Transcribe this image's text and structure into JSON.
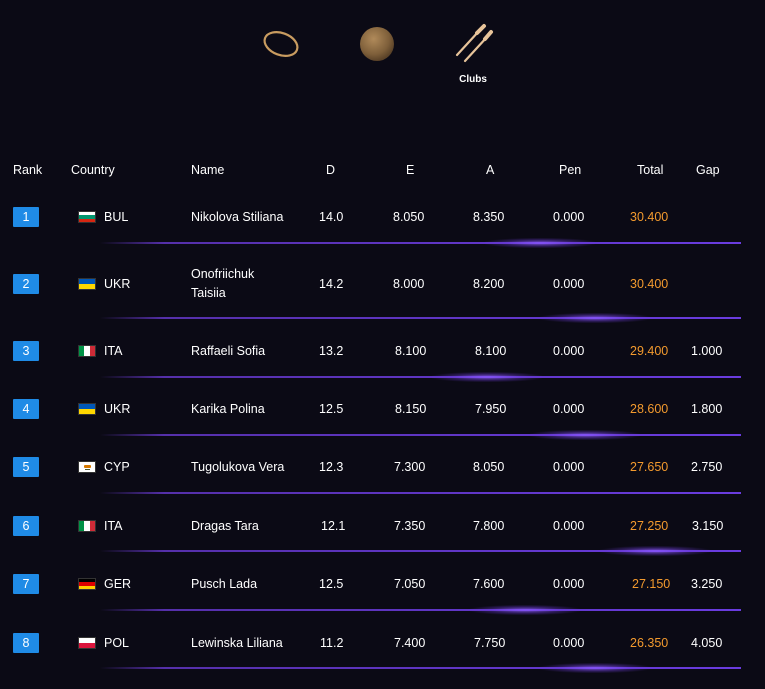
{
  "apparatus": [
    {
      "icon": "hoop-icon",
      "label": ""
    },
    {
      "icon": "ball-icon",
      "label": ""
    },
    {
      "icon": "clubs-icon",
      "label": "Clubs"
    }
  ],
  "table": {
    "headers": {
      "rank": "Rank",
      "country": "Country",
      "name": "Name",
      "d": "D",
      "e": "E",
      "a": "A",
      "pen": "Pen",
      "total": "Total",
      "gap": "Gap"
    },
    "rows": [
      {
        "rank": "1",
        "flag": "bulgaria-flag",
        "country": "BUL",
        "name": "Nikolova Stiliana",
        "name2": "",
        "d": "14.0",
        "e": "8.050",
        "a": "8.350",
        "pen": "0.000",
        "total": "30.400",
        "gap": ""
      },
      {
        "rank": "2",
        "flag": "ukraine-flag",
        "country": "UKR",
        "name": "Onofriichuk",
        "name2": "Taisiia",
        "d": "14.2",
        "e": "8.000",
        "a": "8.200",
        "pen": "0.000",
        "total": "30.400",
        "gap": ""
      },
      {
        "rank": "3",
        "flag": "italy-flag",
        "country": "ITA",
        "name": "Raffaeli Sofia",
        "name2": "",
        "d": "13.2",
        "e": "8.100",
        "a": "8.100",
        "pen": "0.000",
        "total": "29.400",
        "gap": "1.000"
      },
      {
        "rank": "4",
        "flag": "ukraine-flag",
        "country": "UKR",
        "name": "Karika Polina",
        "name2": "",
        "d": "12.5",
        "e": "8.150",
        "a": "7.950",
        "pen": "0.000",
        "total": "28.600",
        "gap": "1.800"
      },
      {
        "rank": "5",
        "flag": "cyprus-flag",
        "country": "CYP",
        "name": "Tugolukova Vera",
        "name2": "",
        "d": "12.3",
        "e": "7.300",
        "a": "8.050",
        "pen": "0.000",
        "total": "27.650",
        "gap": "2.750"
      },
      {
        "rank": "6",
        "flag": "italy-flag",
        "country": "ITA",
        "name": "Dragas Tara",
        "name2": "",
        "d": "12.1",
        "e": "7.350",
        "a": "7.800",
        "pen": "0.000",
        "total": "27.250",
        "gap": "3.150"
      },
      {
        "rank": "7",
        "flag": "germany-flag",
        "country": "GER",
        "name": "Pusch Lada",
        "name2": "",
        "d": "12.5",
        "e": "7.050",
        "a": "7.600",
        "pen": "0.000",
        "total": "27.150",
        "gap": "3.250"
      },
      {
        "rank": "8",
        "flag": "poland-flag",
        "country": "POL",
        "name": "Lewinska Liliana",
        "name2": "",
        "d": "11.2",
        "e": "7.400",
        "a": "7.750",
        "pen": "0.000",
        "total": "26.350",
        "gap": "4.050"
      }
    ]
  },
  "colors": {
    "background": "#0b0a15",
    "rank_badge": "#1f8be6",
    "total_text": "#f39a2e",
    "separator": "#6a3ce0"
  }
}
